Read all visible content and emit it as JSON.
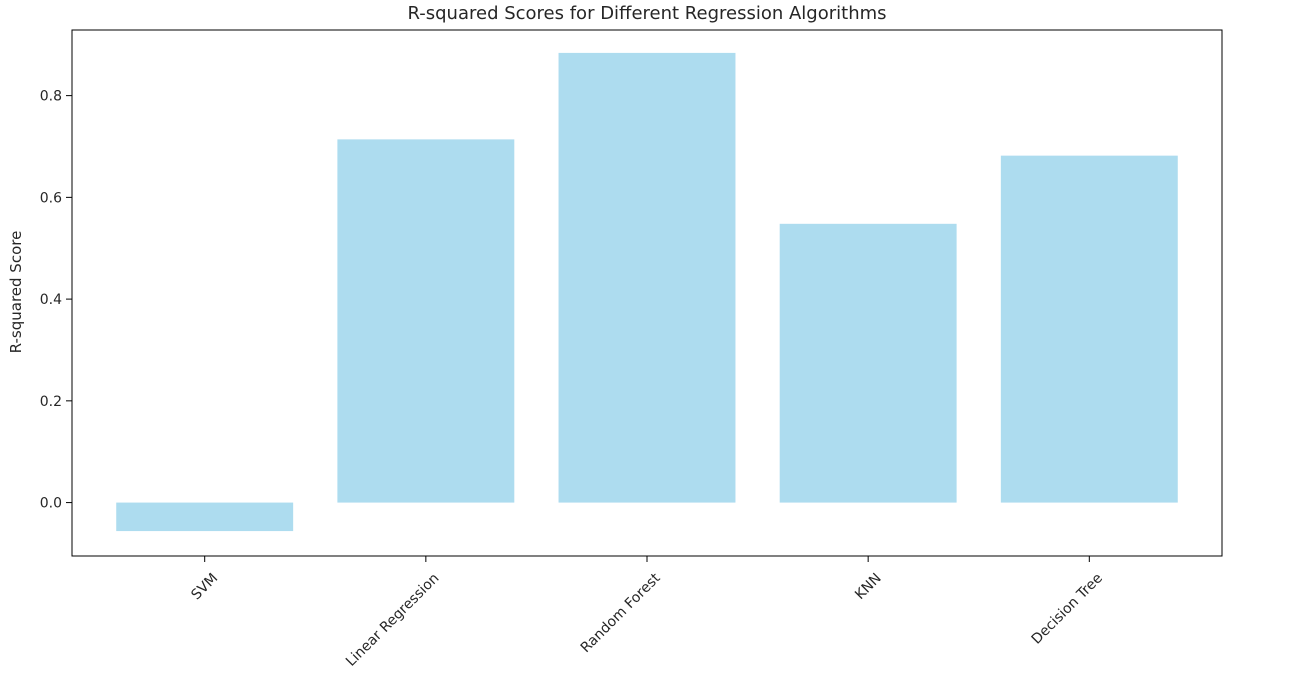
{
  "chart_data": {
    "type": "bar",
    "title": "R-squared Scores for Different Regression Algorithms",
    "xlabel": "",
    "ylabel": "R-squared Score",
    "categories": [
      "SVM",
      "Linear Regression",
      "Random Forest",
      "KNN",
      "Decision Tree"
    ],
    "values": [
      -0.056,
      0.714,
      0.884,
      0.548,
      0.682
    ],
    "ylim": [
      -0.105,
      0.929
    ],
    "yticks": [
      0.0,
      0.2,
      0.4,
      0.6,
      0.8
    ],
    "ytick_labels": [
      "0.0",
      "0.2",
      "0.4",
      "0.6",
      "0.8"
    ],
    "bar_color": "#ADDCEF",
    "grid": false,
    "xtick_rotation": -45
  }
}
